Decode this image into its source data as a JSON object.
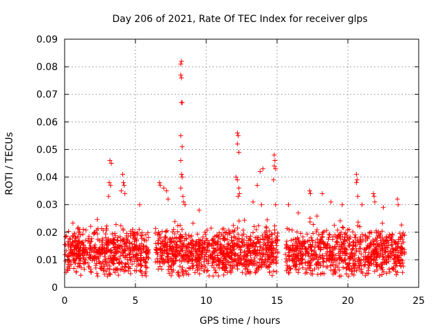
{
  "chart_data": {
    "type": "scatter",
    "title": "Day 206 of 2021, Rate Of TEC Index for receiver glps",
    "xlabel": "GPS time / hours",
    "ylabel": "ROTI / TECUs",
    "xlim": [
      0,
      25
    ],
    "ylim": [
      0,
      0.09
    ],
    "xticks": [
      "0",
      "5",
      "10",
      "15",
      "20",
      "25"
    ],
    "yticks": [
      "0",
      "0.01",
      "0.02",
      "0.03",
      "0.04",
      "0.05",
      "0.06",
      "0.07",
      "0.08",
      "0.09"
    ],
    "grid": true,
    "marker": "+",
    "color": "#ff0000",
    "gaps_hours": [
      [
        5.95,
        6.4
      ],
      [
        15.05,
        15.55
      ]
    ],
    "outliers": [
      {
        "x": 3.2,
        "y": 0.046
      },
      {
        "x": 3.3,
        "y": 0.045
      },
      {
        "x": 3.15,
        "y": 0.038
      },
      {
        "x": 3.25,
        "y": 0.037
      },
      {
        "x": 3.1,
        "y": 0.033
      },
      {
        "x": 4.1,
        "y": 0.041
      },
      {
        "x": 4.15,
        "y": 0.038
      },
      {
        "x": 4.2,
        "y": 0.037
      },
      {
        "x": 4.0,
        "y": 0.035
      },
      {
        "x": 4.25,
        "y": 0.034
      },
      {
        "x": 5.3,
        "y": 0.03
      },
      {
        "x": 6.7,
        "y": 0.038
      },
      {
        "x": 6.75,
        "y": 0.037
      },
      {
        "x": 7.0,
        "y": 0.036
      },
      {
        "x": 7.2,
        "y": 0.035
      },
      {
        "x": 7.3,
        "y": 0.032
      },
      {
        "x": 8.2,
        "y": 0.081
      },
      {
        "x": 8.25,
        "y": 0.082
      },
      {
        "x": 8.2,
        "y": 0.077
      },
      {
        "x": 8.25,
        "y": 0.076
      },
      {
        "x": 8.3,
        "y": 0.067
      },
      {
        "x": 8.25,
        "y": 0.067
      },
      {
        "x": 8.2,
        "y": 0.055
      },
      {
        "x": 8.3,
        "y": 0.051
      },
      {
        "x": 8.2,
        "y": 0.046
      },
      {
        "x": 8.25,
        "y": 0.041
      },
      {
        "x": 8.3,
        "y": 0.04
      },
      {
        "x": 8.2,
        "y": 0.036
      },
      {
        "x": 8.35,
        "y": 0.033
      },
      {
        "x": 8.4,
        "y": 0.031
      },
      {
        "x": 8.5,
        "y": 0.03
      },
      {
        "x": 9.5,
        "y": 0.028
      },
      {
        "x": 12.2,
        "y": 0.056
      },
      {
        "x": 12.25,
        "y": 0.055
      },
      {
        "x": 12.2,
        "y": 0.052
      },
      {
        "x": 12.3,
        "y": 0.049
      },
      {
        "x": 12.1,
        "y": 0.04
      },
      {
        "x": 12.2,
        "y": 0.039
      },
      {
        "x": 12.3,
        "y": 0.036
      },
      {
        "x": 12.35,
        "y": 0.034
      },
      {
        "x": 12.25,
        "y": 0.033
      },
      {
        "x": 13.3,
        "y": 0.031
      },
      {
        "x": 13.6,
        "y": 0.037
      },
      {
        "x": 13.8,
        "y": 0.042
      },
      {
        "x": 14.0,
        "y": 0.043
      },
      {
        "x": 13.9,
        "y": 0.03
      },
      {
        "x": 14.8,
        "y": 0.048
      },
      {
        "x": 14.85,
        "y": 0.046
      },
      {
        "x": 14.8,
        "y": 0.044
      },
      {
        "x": 14.9,
        "y": 0.043
      },
      {
        "x": 14.75,
        "y": 0.039
      },
      {
        "x": 14.9,
        "y": 0.03
      },
      {
        "x": 15.8,
        "y": 0.03
      },
      {
        "x": 16.5,
        "y": 0.027
      },
      {
        "x": 17.3,
        "y": 0.035
      },
      {
        "x": 17.35,
        "y": 0.034
      },
      {
        "x": 18.2,
        "y": 0.034
      },
      {
        "x": 18.8,
        "y": 0.031
      },
      {
        "x": 19.6,
        "y": 0.03
      },
      {
        "x": 20.6,
        "y": 0.041
      },
      {
        "x": 20.65,
        "y": 0.039
      },
      {
        "x": 20.6,
        "y": 0.038
      },
      {
        "x": 20.7,
        "y": 0.033
      },
      {
        "x": 21.0,
        "y": 0.03
      },
      {
        "x": 21.8,
        "y": 0.034
      },
      {
        "x": 21.85,
        "y": 0.033
      },
      {
        "x": 21.9,
        "y": 0.031
      },
      {
        "x": 22.5,
        "y": 0.029
      },
      {
        "x": 23.5,
        "y": 0.032
      },
      {
        "x": 23.55,
        "y": 0.03
      }
    ],
    "bulk": {
      "x_range": [
        0,
        24
      ],
      "typical_y_range": [
        0.004,
        0.027
      ],
      "center_y": 0.013,
      "sample_count": 2400
    }
  }
}
